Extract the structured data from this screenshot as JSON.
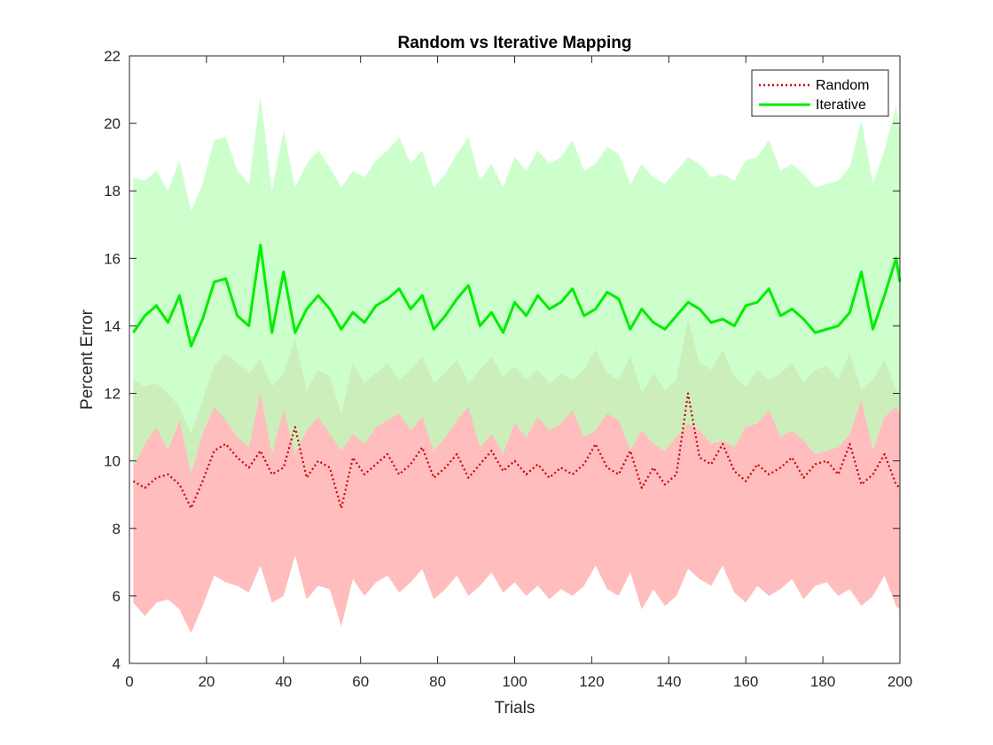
{
  "chart_data": {
    "type": "line",
    "title": "Random vs Iterative Mapping",
    "xlabel": "Trials",
    "ylabel": "Percent Error",
    "xlim": [
      0,
      200
    ],
    "ylim": [
      4,
      22
    ],
    "xticks": [
      0,
      20,
      40,
      60,
      80,
      100,
      120,
      140,
      160,
      180,
      200
    ],
    "yticks": [
      4,
      6,
      8,
      10,
      12,
      14,
      16,
      18,
      20,
      22
    ],
    "grid": false,
    "legend_position": "top-right",
    "x": [
      1,
      4,
      7,
      10,
      13,
      16,
      19,
      22,
      25,
      28,
      31,
      34,
      37,
      40,
      43,
      46,
      49,
      52,
      55,
      58,
      61,
      64,
      67,
      70,
      73,
      76,
      79,
      82,
      85,
      88,
      91,
      94,
      97,
      100,
      103,
      106,
      109,
      112,
      115,
      118,
      121,
      124,
      127,
      130,
      133,
      136,
      139,
      142,
      145,
      148,
      151,
      154,
      157,
      160,
      163,
      166,
      169,
      172,
      175,
      178,
      181,
      184,
      187,
      190,
      193,
      196,
      199,
      200
    ],
    "series": [
      {
        "name": "Random",
        "style": "dotted",
        "color": "#cc0000",
        "band_color": "#ffbdbd",
        "values": [
          9.4,
          9.2,
          9.5,
          9.6,
          9.3,
          8.6,
          9.4,
          10.3,
          10.5,
          10.1,
          9.8,
          10.3,
          9.6,
          9.8,
          11.0,
          9.5,
          10.0,
          9.8,
          8.6,
          10.1,
          9.6,
          9.9,
          10.2,
          9.6,
          9.9,
          10.4,
          9.5,
          9.8,
          10.2,
          9.5,
          9.9,
          10.3,
          9.7,
          10.0,
          9.6,
          9.9,
          9.5,
          9.8,
          9.6,
          9.9,
          10.5,
          9.8,
          9.6,
          10.3,
          9.2,
          9.8,
          9.3,
          9.6,
          12.0,
          10.1,
          9.9,
          10.5,
          9.7,
          9.4,
          9.9,
          9.6,
          9.8,
          10.1,
          9.5,
          9.9,
          10.0,
          9.6,
          10.5,
          9.3,
          9.6,
          10.2,
          9.3,
          9.2
        ],
        "lower": [
          5.8,
          5.4,
          5.8,
          5.9,
          5.6,
          4.9,
          5.7,
          6.6,
          6.4,
          6.3,
          6.1,
          6.9,
          5.8,
          6.0,
          7.2,
          5.9,
          6.3,
          6.2,
          5.1,
          6.5,
          6.0,
          6.4,
          6.6,
          6.1,
          6.4,
          6.8,
          5.9,
          6.2,
          6.6,
          6.0,
          6.3,
          6.7,
          6.1,
          6.4,
          6.0,
          6.3,
          5.9,
          6.2,
          6.0,
          6.3,
          6.9,
          6.2,
          6.0,
          6.7,
          5.6,
          6.2,
          5.7,
          6.0,
          6.8,
          6.5,
          6.3,
          6.9,
          6.1,
          5.8,
          6.3,
          6.0,
          6.2,
          6.5,
          5.9,
          6.3,
          6.4,
          6.0,
          6.2,
          5.7,
          6.0,
          6.6,
          5.7,
          5.6
        ],
        "upper": [
          12.4,
          12.2,
          12.3,
          12.0,
          11.6,
          10.8,
          11.8,
          12.8,
          13.2,
          12.9,
          12.6,
          13.0,
          12.2,
          12.6,
          13.6,
          12.1,
          12.7,
          12.5,
          11.4,
          12.9,
          12.3,
          12.6,
          12.9,
          12.4,
          12.7,
          13.1,
          12.3,
          12.6,
          13.0,
          12.3,
          12.7,
          13.1,
          12.5,
          12.8,
          12.4,
          12.7,
          12.3,
          12.6,
          12.4,
          12.7,
          13.3,
          12.6,
          12.4,
          13.1,
          12.0,
          12.6,
          12.1,
          12.4,
          14.2,
          12.9,
          12.7,
          13.3,
          12.5,
          12.2,
          12.7,
          12.4,
          12.6,
          12.9,
          12.3,
          12.7,
          12.8,
          12.4,
          13.2,
          12.1,
          12.4,
          13.0,
          12.1,
          12.0
        ]
      },
      {
        "name": "Iterative",
        "style": "solid",
        "color": "#00ee00",
        "band_color": "#bbffbb",
        "values": [
          13.8,
          14.3,
          14.6,
          14.1,
          14.9,
          13.4,
          14.2,
          15.3,
          15.4,
          14.3,
          14.0,
          16.4,
          13.8,
          15.6,
          13.8,
          14.5,
          14.9,
          14.5,
          13.9,
          14.4,
          14.1,
          14.6,
          14.8,
          15.1,
          14.5,
          14.9,
          13.9,
          14.3,
          14.8,
          15.2,
          14.0,
          14.4,
          13.8,
          14.7,
          14.3,
          14.9,
          14.5,
          14.7,
          15.1,
          14.3,
          14.5,
          15.0,
          14.8,
          13.9,
          14.5,
          14.1,
          13.9,
          14.3,
          14.7,
          14.5,
          14.1,
          14.2,
          14.0,
          14.6,
          14.7,
          15.1,
          14.3,
          14.5,
          14.2,
          13.8,
          13.9,
          14.0,
          14.4,
          15.6,
          13.9,
          14.9,
          16.0,
          15.3
        ],
        "lower": [
          9.8,
          10.5,
          11.0,
          10.3,
          11.2,
          9.6,
          10.8,
          11.6,
          11.2,
          10.7,
          10.4,
          12.0,
          10.2,
          11.5,
          10.2,
          10.9,
          11.3,
          10.8,
          10.3,
          10.8,
          10.5,
          11.0,
          11.2,
          11.4,
          10.9,
          11.3,
          10.3,
          10.7,
          11.2,
          11.6,
          10.4,
          10.8,
          10.2,
          11.1,
          10.7,
          11.3,
          10.9,
          11.1,
          11.5,
          10.7,
          10.9,
          11.4,
          11.2,
          10.3,
          10.9,
          10.5,
          10.3,
          10.7,
          11.1,
          10.9,
          10.5,
          10.6,
          10.4,
          11.0,
          11.1,
          11.5,
          10.7,
          10.9,
          10.6,
          10.2,
          10.3,
          10.4,
          10.8,
          11.8,
          10.3,
          11.3,
          11.6,
          11.4
        ],
        "upper": [
          18.4,
          18.3,
          18.6,
          18.0,
          18.9,
          17.4,
          18.2,
          19.5,
          19.6,
          18.6,
          18.2,
          20.8,
          18.0,
          19.8,
          18.1,
          18.8,
          19.2,
          18.7,
          18.1,
          18.6,
          18.4,
          18.9,
          19.2,
          19.6,
          18.8,
          19.2,
          18.1,
          18.5,
          19.1,
          19.6,
          18.3,
          18.8,
          18.1,
          19.0,
          18.6,
          19.2,
          18.8,
          19.0,
          19.5,
          18.6,
          18.8,
          19.3,
          19.1,
          18.2,
          18.8,
          18.4,
          18.2,
          18.6,
          19.0,
          18.8,
          18.4,
          18.5,
          18.3,
          18.9,
          19.0,
          19.5,
          18.6,
          18.8,
          18.5,
          18.1,
          18.2,
          18.3,
          18.7,
          20.1,
          18.2,
          19.2,
          20.5,
          19.8
        ]
      }
    ]
  }
}
